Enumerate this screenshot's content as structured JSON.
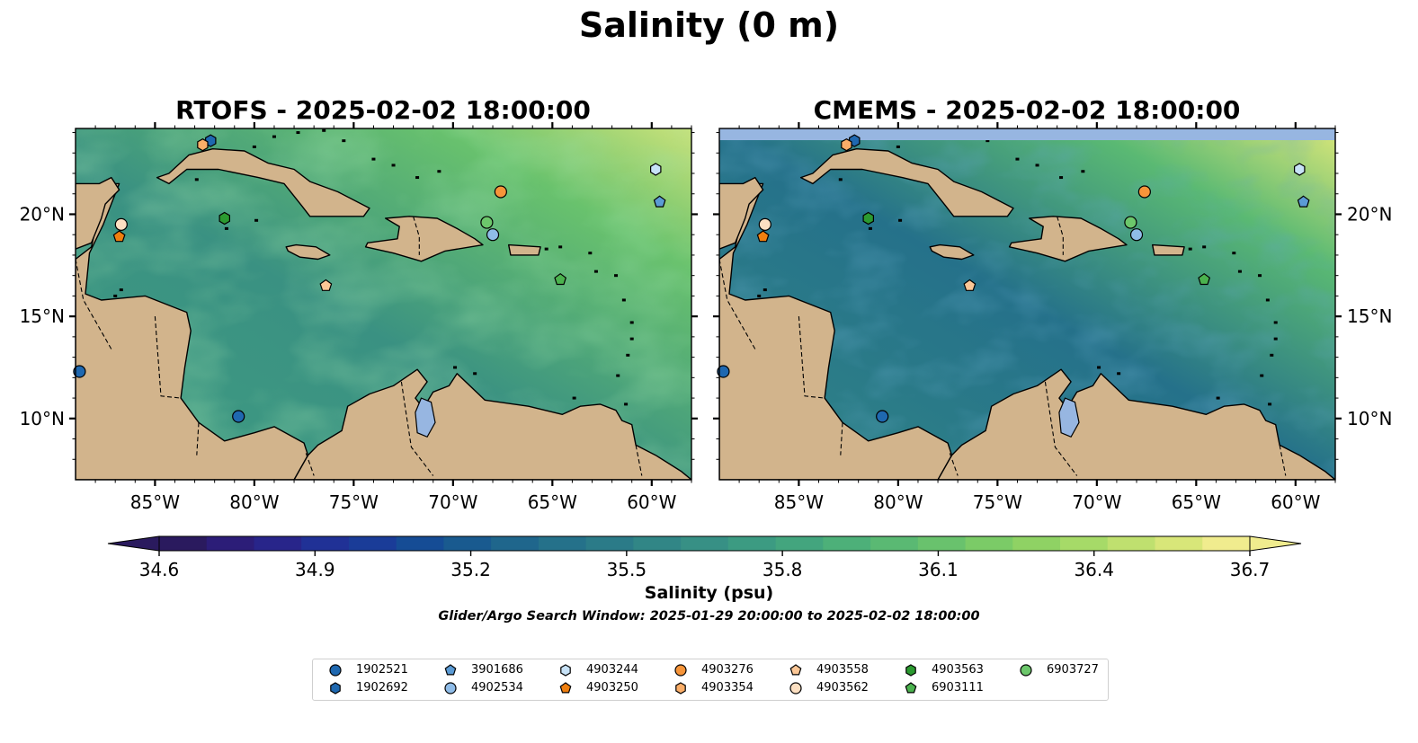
{
  "figure": {
    "suptitle": "Salinity (0 m)",
    "search_window": "Glider/Argo Search Window: 2025-01-29 20:00:00 to 2025-02-02 18:00:00"
  },
  "panels": [
    {
      "title": "RTOFS - 2025-02-02 18:00:00"
    },
    {
      "title": "CMEMS - 2025-02-02 18:00:00"
    }
  ],
  "map": {
    "lon_range": [
      -89,
      -58
    ],
    "lat_range": [
      7,
      24.2
    ],
    "lon_ticks": [
      -85,
      -80,
      -75,
      -70,
      -65,
      -60
    ],
    "lon_tick_labels": [
      "85°W",
      "80°W",
      "75°W",
      "70°W",
      "65°W",
      "60°W"
    ],
    "lat_ticks": [
      10,
      15,
      20
    ],
    "lat_tick_labels": [
      "10°N",
      "15°N",
      "20°N"
    ],
    "land_color": "#d2b48c",
    "lake_color": "#97b6e1",
    "pacific_fill": "#2c1a5e"
  },
  "colorbar": {
    "label": "Salinity (psu)",
    "vmin": 34.6,
    "vmax": 36.7,
    "ticks": [
      "34.6",
      "34.9",
      "35.2",
      "35.5",
      "35.8",
      "36.1",
      "36.4",
      "36.7"
    ],
    "extend": "both",
    "colors": [
      "#2a1a5e",
      "#2c1d78",
      "#28258a",
      "#203196",
      "#1a3c98",
      "#154c95",
      "#195a8f",
      "#1f668c",
      "#25718a",
      "#2b7b88",
      "#318686",
      "#379085",
      "#3c9b82",
      "#43a57e",
      "#4db079",
      "#5ab973",
      "#69c26d",
      "#7bcb67",
      "#8fd264",
      "#a6da68",
      "#bfe06f",
      "#d8e679",
      "#f0ec8e"
    ]
  },
  "legend": {
    "entries": [
      {
        "id": "1902521",
        "marker": "circle",
        "color": "#1f68b0"
      },
      {
        "id": "1902692",
        "marker": "hexagon",
        "color": "#1f68b0"
      },
      {
        "id": "3901686",
        "marker": "pentagon",
        "color": "#5b9bd5"
      },
      {
        "id": "4902534",
        "marker": "circle",
        "color": "#8fbce8"
      },
      {
        "id": "4903244",
        "marker": "hexagon",
        "color": "#c7e2f7"
      },
      {
        "id": "4903250",
        "marker": "pentagon",
        "color": "#f07f0f"
      },
      {
        "id": "4903276",
        "marker": "circle",
        "color": "#f7953a"
      },
      {
        "id": "4903354",
        "marker": "hexagon",
        "color": "#fbae68"
      },
      {
        "id": "4903558",
        "marker": "pentagon",
        "color": "#fcc796"
      },
      {
        "id": "4903562",
        "marker": "circle",
        "color": "#fde0c2"
      },
      {
        "id": "4903563",
        "marker": "hexagon",
        "color": "#2b9a30"
      },
      {
        "id": "6903111",
        "marker": "pentagon",
        "color": "#4bb24e"
      },
      {
        "id": "6903727",
        "marker": "circle",
        "color": "#6cc76b"
      }
    ]
  },
  "floats": [
    {
      "id": "1902521",
      "lon": -88.8,
      "lat": 12.3
    },
    {
      "id": "1902692",
      "lon": -82.2,
      "lat": 23.6
    },
    {
      "id": "3901686",
      "lon": -59.6,
      "lat": 20.6
    },
    {
      "id": "4902534",
      "lon": -68.0,
      "lat": 19.0
    },
    {
      "id": "4903244",
      "lon": -59.8,
      "lat": 22.2
    },
    {
      "id": "4903250",
      "lon": -86.8,
      "lat": 18.9
    },
    {
      "id": "4903276",
      "lon": -67.6,
      "lat": 21.1
    },
    {
      "id": "4903354",
      "lon": -82.6,
      "lat": 23.4
    },
    {
      "id": "4903558",
      "lon": -76.4,
      "lat": 16.5
    },
    {
      "id": "4903562",
      "lon": -86.7,
      "lat": 19.5
    },
    {
      "id": "4903563",
      "lon": -81.5,
      "lat": 19.8
    },
    {
      "id": "6903111",
      "lon": -64.6,
      "lat": 16.8
    },
    {
      "id": "6903727",
      "lon": -68.3,
      "lat": 19.6
    },
    {
      "id": "1902521",
      "lon": -80.8,
      "lat": 10.1
    }
  ]
}
